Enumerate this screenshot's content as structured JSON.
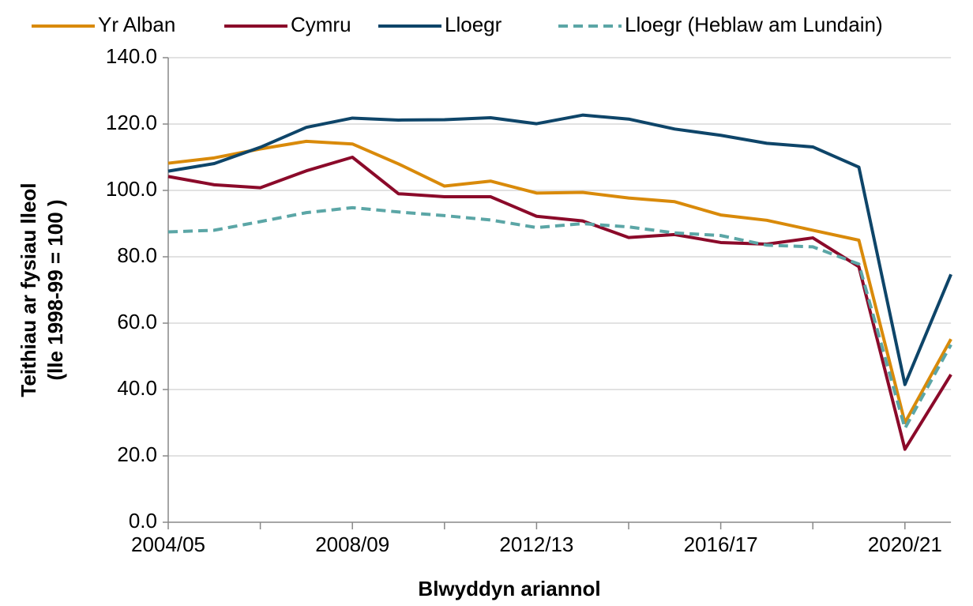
{
  "chart_data": {
    "type": "line",
    "x_label": "Blwyddyn ariannol",
    "y_label": [
      "Teithiau ar fysiau lleol",
      "(lle 1998-99 = 100 )"
    ],
    "categories": [
      "2004/05",
      null,
      null,
      null,
      "2008/09",
      null,
      null,
      null,
      "2012/13",
      null,
      null,
      null,
      "2016/17",
      null,
      null,
      null,
      "2020/21",
      null
    ],
    "series": [
      {
        "name": "Yr Alban",
        "color": "#d98a0a",
        "dash": false,
        "values": [
          108.2,
          109.8,
          112.5,
          114.8,
          114.0,
          108.0,
          101.3,
          102.8,
          99.2,
          99.4,
          97.7,
          96.6,
          92.6,
          91.0,
          88.0,
          85.0,
          30.0,
          55.2
        ]
      },
      {
        "name": "Cymru",
        "color": "#8b0a2a",
        "dash": false,
        "values": [
          104.2,
          101.7,
          100.8,
          105.9,
          110.0,
          99.0,
          98.1,
          98.1,
          92.2,
          90.8,
          85.8,
          86.7,
          84.3,
          83.8,
          85.7,
          77.0,
          22.0,
          44.5
        ]
      },
      {
        "name": "Lloegr",
        "color": "#0e4569",
        "dash": false,
        "values": [
          105.8,
          108.1,
          113.0,
          119.0,
          121.8,
          121.2,
          121.3,
          121.9,
          120.1,
          122.7,
          121.5,
          118.5,
          116.6,
          114.2,
          113.1,
          107.0,
          41.5,
          74.7
        ]
      },
      {
        "name": "Lloegr (Heblaw am Lundain)",
        "color": "#5ba6a6",
        "dash": true,
        "values": [
          87.5,
          88.0,
          90.6,
          93.3,
          94.8,
          93.5,
          92.4,
          91.1,
          88.8,
          90.0,
          89.0,
          87.2,
          86.4,
          83.5,
          83.0,
          77.8,
          28.3,
          53.5
        ]
      }
    ],
    "ylim": [
      0,
      140
    ],
    "yticks": [
      {
        "value": 0,
        "label": "0.0"
      },
      {
        "value": 20,
        "label": "20.0"
      },
      {
        "value": 40,
        "label": "40.0"
      },
      {
        "value": 60,
        "label": "60.0"
      },
      {
        "value": 80,
        "label": "80.0"
      },
      {
        "value": 100,
        "label": "100.0"
      },
      {
        "value": 120,
        "label": "120.0"
      },
      {
        "value": 140,
        "label": "140.0"
      }
    ],
    "grid": true,
    "legend": "top"
  }
}
